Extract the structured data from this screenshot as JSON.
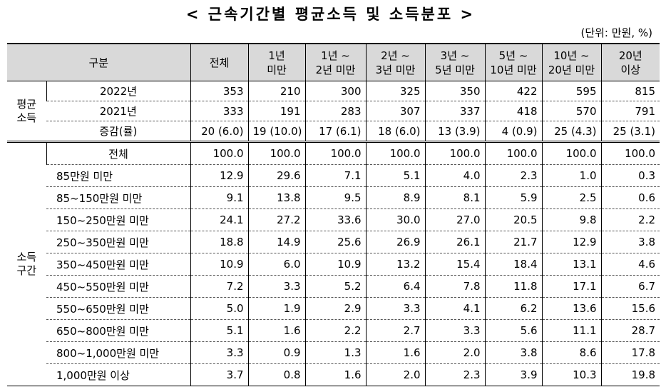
{
  "title": "< 근속기간별 평균소득 및 소득분포 >",
  "unit": "(단위: 만원, %)",
  "table": {
    "header": [
      [
        "구분"
      ],
      [
        "전체"
      ],
      [
        "1년",
        "미만"
      ],
      [
        "1년 ~",
        "2년 미만"
      ],
      [
        "2년 ~",
        "3년 미만"
      ],
      [
        "3년 ~",
        "5년 미만"
      ],
      [
        "5년 ~",
        "10년 미만"
      ],
      [
        "10년 ~",
        "20년 미만"
      ],
      [
        "20년",
        "이상"
      ]
    ],
    "groups": [
      {
        "label": [
          "평균",
          "소득"
        ],
        "rows": [
          {
            "label": "2022년",
            "cells": [
              "353",
              "210",
              "300",
              "325",
              "350",
              "422",
              "595",
              "815"
            ]
          },
          {
            "label": "2021년",
            "cells": [
              "333",
              "191",
              "283",
              "307",
              "337",
              "418",
              "570",
              "791"
            ]
          },
          {
            "label": "증감(률)",
            "cells": [
              "20 (6.0)",
              "19 (10.0)",
              "17 (6.1)",
              "18 (6.0)",
              "13 (3.9)",
              "4 (0.9)",
              "25 (4.3)",
              "25 (3.1)"
            ]
          }
        ]
      },
      {
        "label": [
          "소득",
          "구간"
        ],
        "rows": [
          {
            "label": "전체",
            "cells": [
              "100.0",
              "100.0",
              "100.0",
              "100.0",
              "100.0",
              "100.0",
              "100.0",
              "100.0"
            ]
          },
          {
            "label": "85만원 미만",
            "cells": [
              "12.9",
              "29.6",
              "7.1",
              "5.1",
              "4.0",
              "2.3",
              "1.0",
              "0.3"
            ]
          },
          {
            "label": "85~150만원 미만",
            "cells": [
              "9.1",
              "13.8",
              "9.5",
              "8.9",
              "8.1",
              "5.9",
              "2.5",
              "0.6"
            ]
          },
          {
            "label": "150~250만원 미만",
            "cells": [
              "24.1",
              "27.2",
              "33.6",
              "30.0",
              "27.0",
              "20.5",
              "9.8",
              "2.2"
            ]
          },
          {
            "label": "250~350만원 미만",
            "cells": [
              "18.8",
              "14.9",
              "25.6",
              "26.9",
              "26.1",
              "21.7",
              "12.9",
              "3.8"
            ]
          },
          {
            "label": "350~450만원 미만",
            "cells": [
              "10.9",
              "6.0",
              "10.9",
              "13.2",
              "15.4",
              "18.4",
              "13.1",
              "4.6"
            ]
          },
          {
            "label": "450~550만원 미만",
            "cells": [
              "7.2",
              "3.3",
              "5.2",
              "6.4",
              "7.8",
              "11.8",
              "17.1",
              "6.7"
            ]
          },
          {
            "label": "550~650만원 미만",
            "cells": [
              "5.0",
              "1.9",
              "2.9",
              "3.3",
              "4.1",
              "6.2",
              "13.6",
              "15.6"
            ]
          },
          {
            "label": "650~800만원 미만",
            "cells": [
              "5.1",
              "1.6",
              "2.2",
              "2.7",
              "3.3",
              "5.6",
              "11.1",
              "28.7"
            ]
          },
          {
            "label": "800~1,000만원 미만",
            "cells": [
              "3.3",
              "0.9",
              "1.3",
              "1.6",
              "2.0",
              "3.8",
              "8.6",
              "17.8"
            ]
          },
          {
            "label": "1,000만원 이상",
            "cells": [
              "3.7",
              "0.8",
              "1.6",
              "2.0",
              "2.3",
              "3.9",
              "10.3",
              "19.8"
            ]
          }
        ]
      }
    ]
  }
}
